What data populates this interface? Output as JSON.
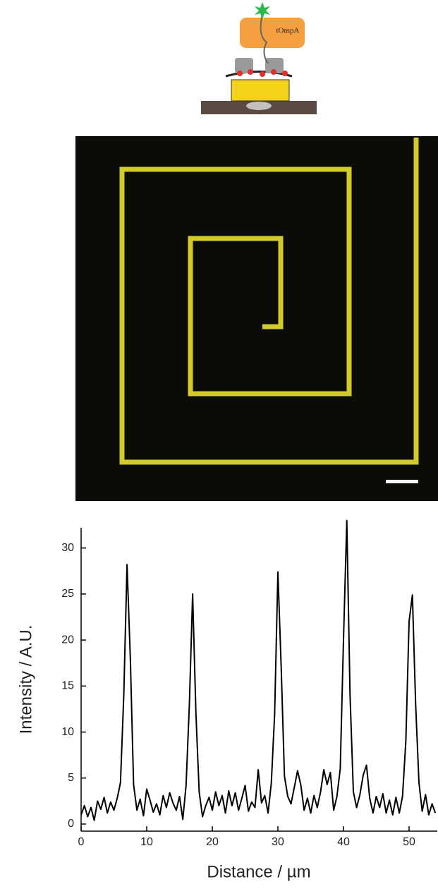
{
  "schematic": {
    "label": "tOmpA"
  },
  "chart_data": {
    "type": "line",
    "xlabel": "Distance / µm",
    "ylabel": "Intensity / A.U.",
    "color": "#000000",
    "x": [
      0,
      0.5,
      1,
      1.5,
      2,
      2.5,
      3,
      3.5,
      4,
      4.5,
      5,
      5.5,
      6,
      6.5,
      7,
      7.5,
      8,
      8.5,
      9,
      9.5,
      10,
      10.5,
      11,
      11.5,
      12,
      12.5,
      13,
      13.5,
      14,
      14.5,
      15,
      15.5,
      16,
      16.5,
      17,
      17.5,
      18,
      18.5,
      19,
      19.5,
      20,
      20.5,
      21,
      21.5,
      22,
      22.5,
      23,
      23.5,
      24,
      24.5,
      25,
      25.5,
      26,
      26.5,
      27,
      27.5,
      28,
      28.5,
      29,
      29.5,
      30,
      30.5,
      31,
      31.5,
      32,
      32.5,
      33,
      33.5,
      34,
      34.5,
      35,
      35.5,
      36,
      36.5,
      37,
      37.5,
      38,
      38.5,
      39,
      39.5,
      40,
      40.5,
      41,
      41.5,
      42,
      42.5,
      43,
      43.5,
      44,
      44.5,
      45,
      45.5,
      46,
      46.5,
      47,
      47.5,
      48,
      48.5,
      49,
      49.5,
      50,
      50.5,
      51,
      51.5,
      52,
      52.5,
      53,
      53.5,
      54
    ],
    "values": [
      1.0,
      2.0,
      0.8,
      1.8,
      0.4,
      2.5,
      1.6,
      2.9,
      1.2,
      2.4,
      1.5,
      2.8,
      4.5,
      14,
      28.2,
      18,
      4.3,
      1.5,
      2.7,
      0.9,
      3.8,
      2.6,
      1.3,
      2.2,
      1.0,
      3.1,
      1.8,
      3.4,
      2.3,
      1.5,
      3.0,
      0.5,
      4.2,
      13,
      25,
      12,
      3.5,
      0.8,
      2.0,
      2.9,
      1.5,
      3.5,
      2.0,
      3.1,
      1.2,
      3.6,
      2.0,
      3.4,
      1.5,
      2.8,
      4.2,
      1.4,
      2.4,
      1.8,
      5.9,
      2.3,
      3.1,
      1.2,
      4.5,
      12,
      27.4,
      17,
      5.2,
      3.0,
      2.2,
      4.0,
      5.8,
      4.2,
      1.5,
      2.8,
      1.2,
      3.1,
      1.8,
      3.5,
      5.9,
      4.3,
      5.6,
      1.5,
      3.0,
      6,
      20,
      33,
      14,
      3.5,
      1.8,
      3.2,
      5.3,
      6.4,
      2.8,
      1.2,
      3.0,
      1.8,
      3.3,
      1.2,
      2.6,
      1.0,
      2.9,
      1.2,
      3.0,
      9,
      22,
      24.9,
      13,
      4.5,
      1.4,
      3.2,
      1.0,
      2.2,
      1.2
    ],
    "xlim": [
      0,
      54.3
    ],
    "ylim": [
      -0.77,
      32.2
    ],
    "xticks": [
      0,
      10,
      20,
      30,
      40,
      50
    ],
    "yticks": [
      0,
      5,
      10,
      15,
      20,
      25,
      30
    ]
  }
}
